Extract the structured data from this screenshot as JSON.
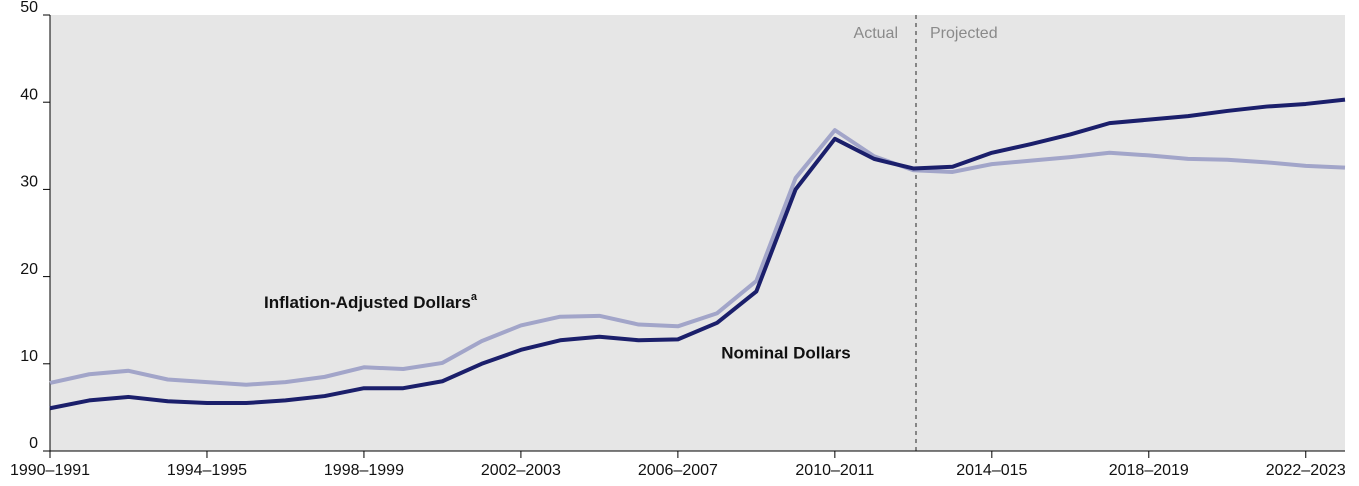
{
  "chart_data": {
    "type": "line",
    "categories": [
      "1990–1991",
      null,
      null,
      null,
      "1994–1995",
      null,
      null,
      null,
      "1998–1999",
      null,
      null,
      null,
      "2002–2003",
      null,
      null,
      null,
      "2006–2007",
      null,
      null,
      null,
      "2010–2011",
      null,
      null,
      null,
      "2014–015",
      null,
      null,
      null,
      "2018–2019",
      null,
      null,
      null,
      "2022–2023",
      null
    ],
    "series": [
      {
        "name": "Nominal Dollars",
        "color": "#1b1f6b",
        "values": [
          4.9,
          5.8,
          6.2,
          5.7,
          5.5,
          5.5,
          5.8,
          6.3,
          7.2,
          7.2,
          8.0,
          10.0,
          11.6,
          12.7,
          13.1,
          12.7,
          12.8,
          14.7,
          18.3,
          30.0,
          35.8,
          33.5,
          32.4,
          32.6,
          34.2,
          35.2,
          36.3,
          37.6,
          38.0,
          38.4,
          39.0,
          39.5,
          39.8,
          40.3
        ]
      },
      {
        "name": "Inflation-Adjusted Dollars",
        "note": "a",
        "color": "#a2a5c9",
        "values": [
          7.8,
          8.8,
          9.2,
          8.2,
          7.9,
          7.6,
          7.9,
          8.5,
          9.6,
          9.4,
          10.1,
          12.6,
          14.4,
          15.4,
          15.5,
          14.5,
          14.3,
          15.8,
          19.5,
          31.3,
          36.8,
          33.8,
          32.2,
          32.0,
          32.9,
          33.3,
          33.7,
          34.2,
          33.9,
          33.5,
          33.4,
          33.1,
          32.7,
          32.5
        ]
      }
    ],
    "annotations": [
      "Actual",
      "Projected"
    ],
    "ylim": [
      0,
      50
    ],
    "yticks": [
      0,
      10,
      20,
      30,
      40,
      50
    ],
    "background": "#e6e6e6"
  }
}
